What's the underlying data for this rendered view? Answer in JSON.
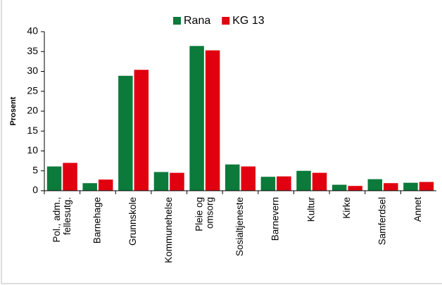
{
  "chart_data": {
    "type": "bar",
    "y_label": "Prosent",
    "categories": [
      "Pol., adm.,\nfellesutg.",
      "Barnehage",
      "Grunnskole",
      "Kommunehelse",
      "Pleie og\nomsorg",
      "Sosialtjeneste",
      "Barnevern",
      "Kultur",
      "Kirke",
      "Samferdsel",
      "Annet"
    ],
    "series": [
      {
        "name": "Rana",
        "color": "#0b7a3b",
        "values": [
          6.1,
          1.9,
          28.9,
          4.7,
          36.4,
          6.6,
          3.5,
          5.0,
          1.5,
          2.9,
          2.0
        ]
      },
      {
        "name": "KG 13",
        "color": "#e0000f",
        "values": [
          7.0,
          2.8,
          30.4,
          4.5,
          35.3,
          6.1,
          3.6,
          4.5,
          1.2,
          1.9,
          2.2
        ]
      }
    ],
    "ylim": [
      0,
      40
    ],
    "yticks": [
      0,
      5,
      10,
      15,
      20,
      25,
      30,
      35,
      40
    ],
    "legend": "top"
  }
}
